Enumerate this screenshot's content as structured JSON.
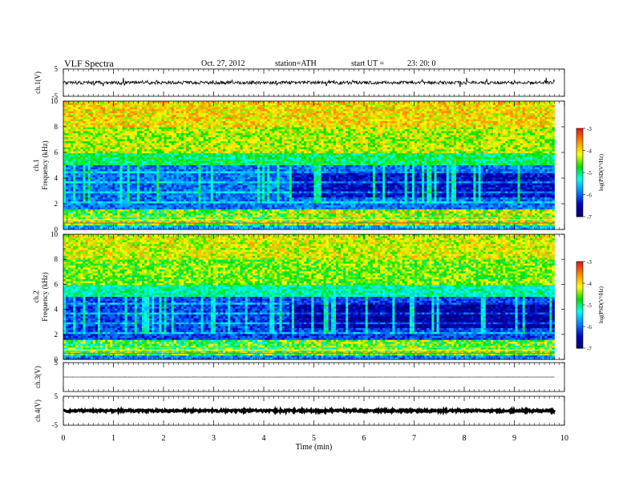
{
  "header": {
    "title": "VLF  Spectra",
    "date": "Oct. 27, 2012",
    "station": "station=ATH",
    "start_label": "start  UT  =",
    "start_time": "23: 20: 0"
  },
  "colorbar": {
    "label": "log(PSD(V²/Hz)",
    "ticks": [
      "-3",
      "-4",
      "-5",
      "-6",
      "-7"
    ],
    "colors": [
      "#ffffff",
      "#e41a1c",
      "#ff8c00",
      "#ffff00",
      "#00e000",
      "#00ffff",
      "#0080ff",
      "#0000c0",
      "#000066"
    ]
  },
  "chart_data": [
    {
      "type": "line",
      "panel": "ch1",
      "ylabel": "ch.1(V)",
      "yticks": [
        "5",
        "-5"
      ],
      "ylim": [
        -5,
        5
      ],
      "x_range_min": [
        0,
        9.8
      ],
      "baseline": 0,
      "noise_amplitude": 0.6,
      "spike_amplitude": 1.6
    },
    {
      "type": "heatmap",
      "panel": "ch1",
      "ylabel_channel": "ch.1",
      "ylabel": "Frequency  (kHz)",
      "yticks": [
        "10",
        "8",
        "6",
        "4",
        "2",
        "0"
      ],
      "ylim_khz": [
        0,
        10
      ],
      "x_range_min": [
        0,
        9.8
      ],
      "z_range_log_psd": [
        -7,
        -3
      ],
      "change_at_min": 4.5
    },
    {
      "type": "heatmap",
      "panel": "ch2",
      "ylabel_channel": "ch.2",
      "ylabel": "Frequency  (kHz)",
      "yticks": [
        "10",
        "8",
        "6",
        "4",
        "2",
        "0"
      ],
      "ylim_khz": [
        0,
        10
      ],
      "x_range_min": [
        0,
        9.8
      ],
      "z_range_log_psd": [
        -7,
        -3
      ],
      "change_at_min": 4.5
    },
    {
      "type": "line",
      "panel": "ch3",
      "ylabel": "ch.3(V)",
      "yticks": [
        "5"
      ],
      "ylim": [
        -5,
        5
      ],
      "x_range_min": [
        0,
        9.8
      ],
      "baseline": 0,
      "noise_amplitude": 0.02
    },
    {
      "type": "line",
      "panel": "ch4",
      "ylabel": "ch.4(V)",
      "yticks": [
        "5",
        "-5"
      ],
      "ylim": [
        -5,
        5
      ],
      "x_range_min": [
        0,
        9.8
      ],
      "baseline": 0,
      "noise_amplitude": 0.35
    }
  ],
  "xaxis": {
    "label": "Time  (min)",
    "ticks": [
      "0",
      "1",
      "2",
      "3",
      "4",
      "5",
      "6",
      "7",
      "8",
      "9",
      "10"
    ],
    "xlim_min": [
      0,
      10
    ]
  }
}
